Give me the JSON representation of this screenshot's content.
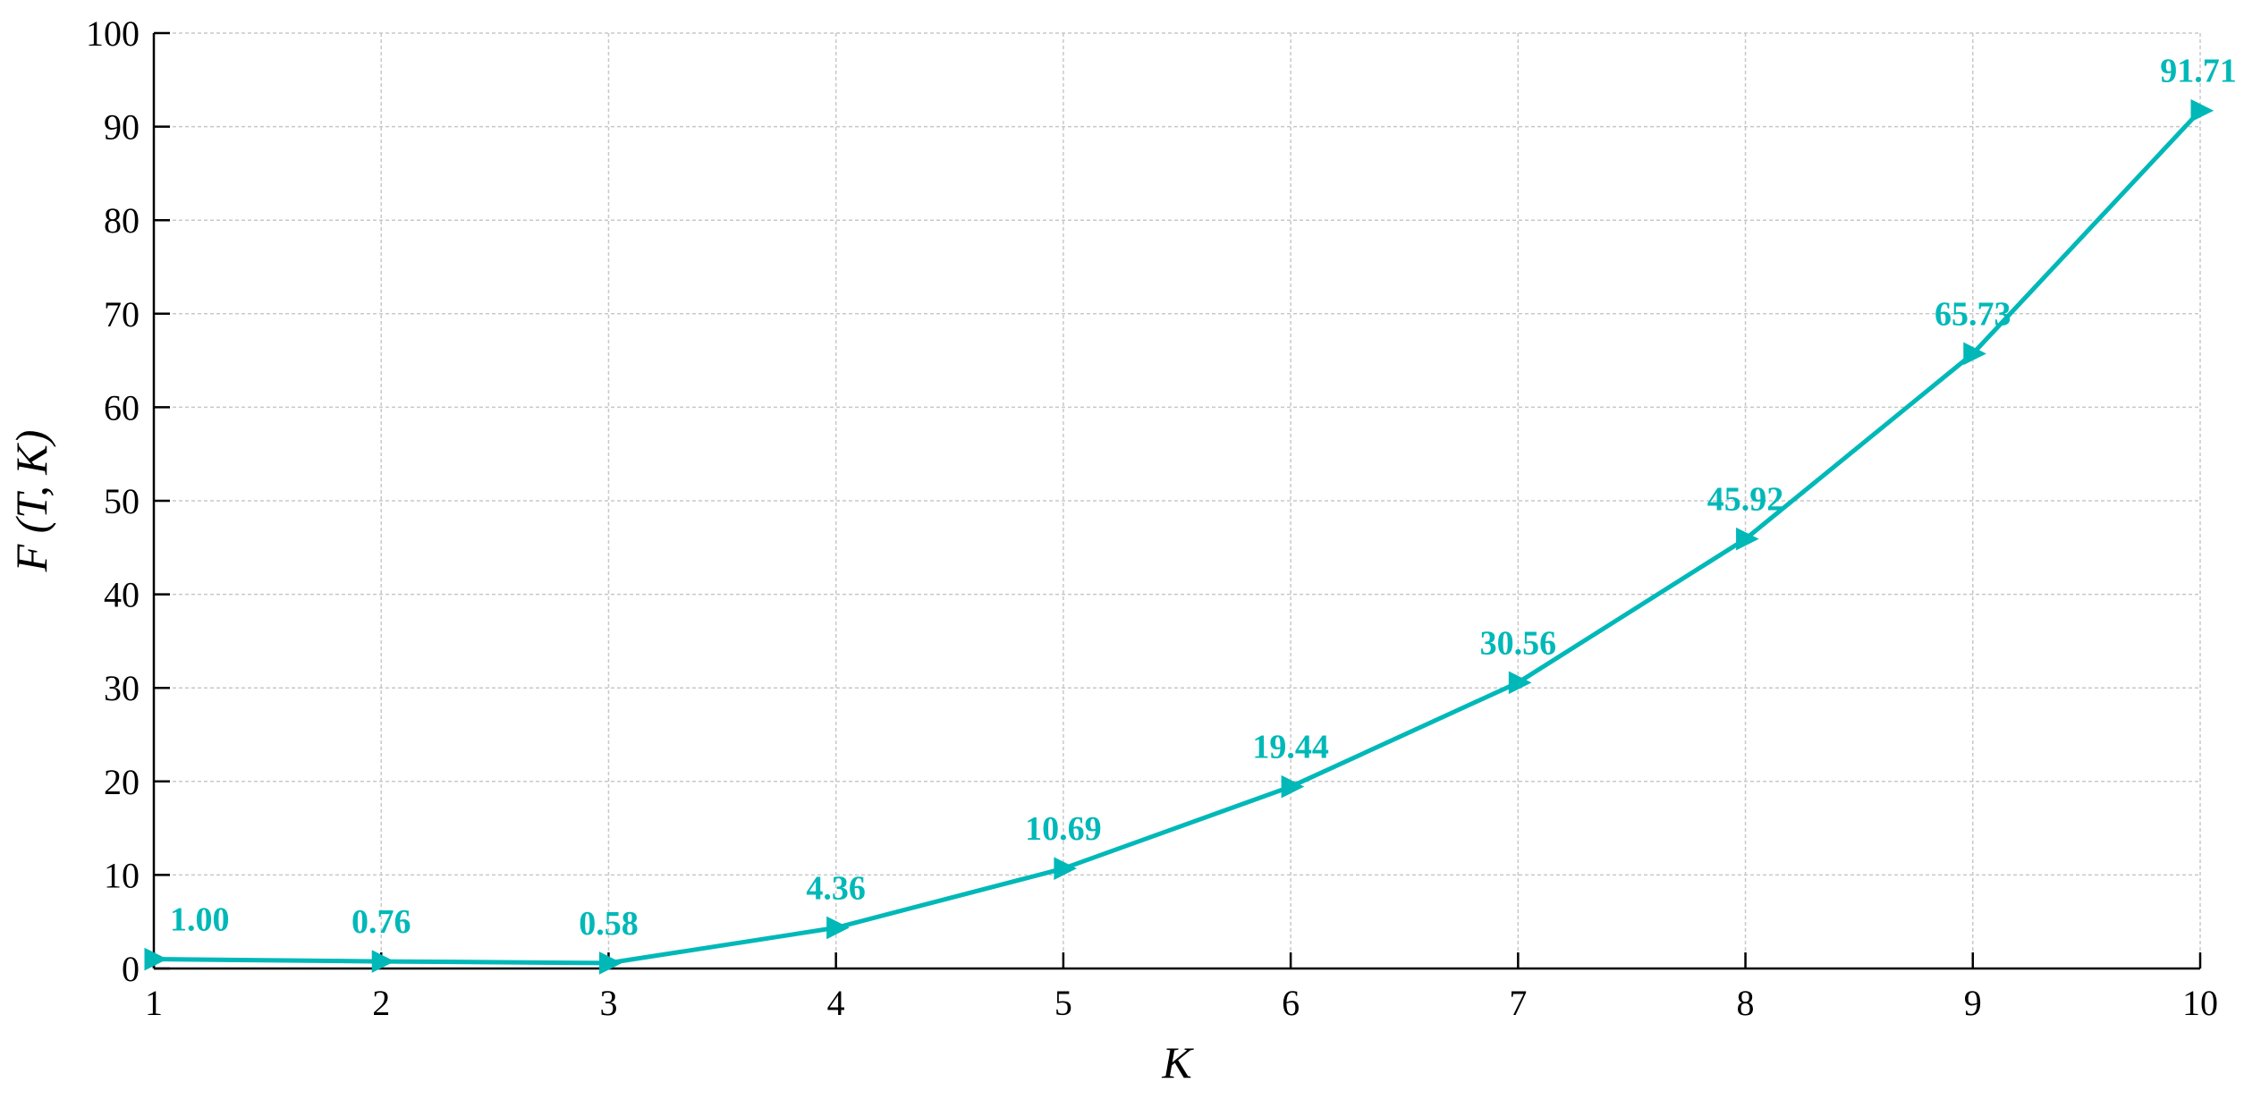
{
  "colors": {
    "series": "#00B8B8"
  },
  "chart_data": {
    "type": "line",
    "xlabel": "K",
    "ylabel": "F (T, K)",
    "x": [
      1,
      2,
      3,
      4,
      5,
      6,
      7,
      8,
      9,
      10
    ],
    "series": [
      {
        "values": [
          1.0,
          0.76,
          0.58,
          4.36,
          10.69,
          19.44,
          30.56,
          45.92,
          65.73,
          91.71
        ],
        "marker": "triangle-right"
      }
    ],
    "data_labels": [
      "1.00",
      "0.76",
      "0.58",
      "4.36",
      "10.69",
      "19.44",
      "30.56",
      "45.92",
      "65.73",
      "91.71"
    ],
    "xlim": [
      1,
      10
    ],
    "ylim": [
      0,
      100
    ],
    "xticks": [
      "1",
      "2",
      "3",
      "4",
      "5",
      "6",
      "7",
      "8",
      "9",
      "10"
    ],
    "yticks": [
      "0",
      "10",
      "20",
      "30",
      "40",
      "50",
      "60",
      "70",
      "80",
      "90",
      "100"
    ],
    "grid": true,
    "legend": "none"
  }
}
